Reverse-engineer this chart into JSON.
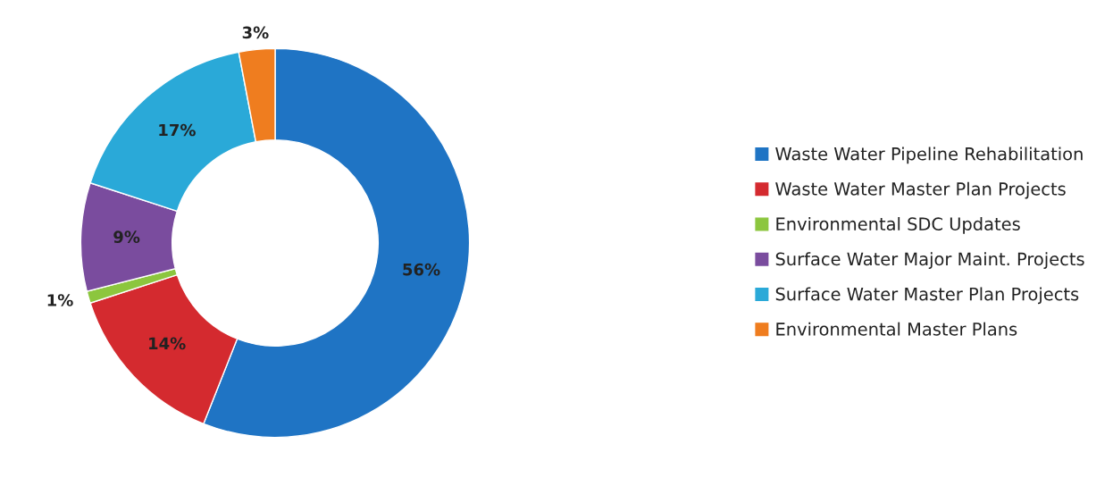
{
  "chart_data": {
    "type": "donut",
    "categories": [
      "Waste Water Pipeline Rehabilitation",
      "Waste Water Master Plan Projects",
      "Environmental SDC Updates",
      "Surface Water Major Maint. Projects",
      "Surface Water Master Plan Projects",
      "Environmental Master Plans"
    ],
    "values": [
      56,
      14,
      1,
      9,
      17,
      3
    ],
    "value_labels": [
      "56%",
      "14%",
      "1%",
      "9%",
      "17%",
      "3%"
    ],
    "colors": [
      "#1f74c4",
      "#d42a2f",
      "#8cc63e",
      "#7a4c9e",
      "#2aa9d8",
      "#ef7d1f"
    ],
    "legend": "right"
  }
}
